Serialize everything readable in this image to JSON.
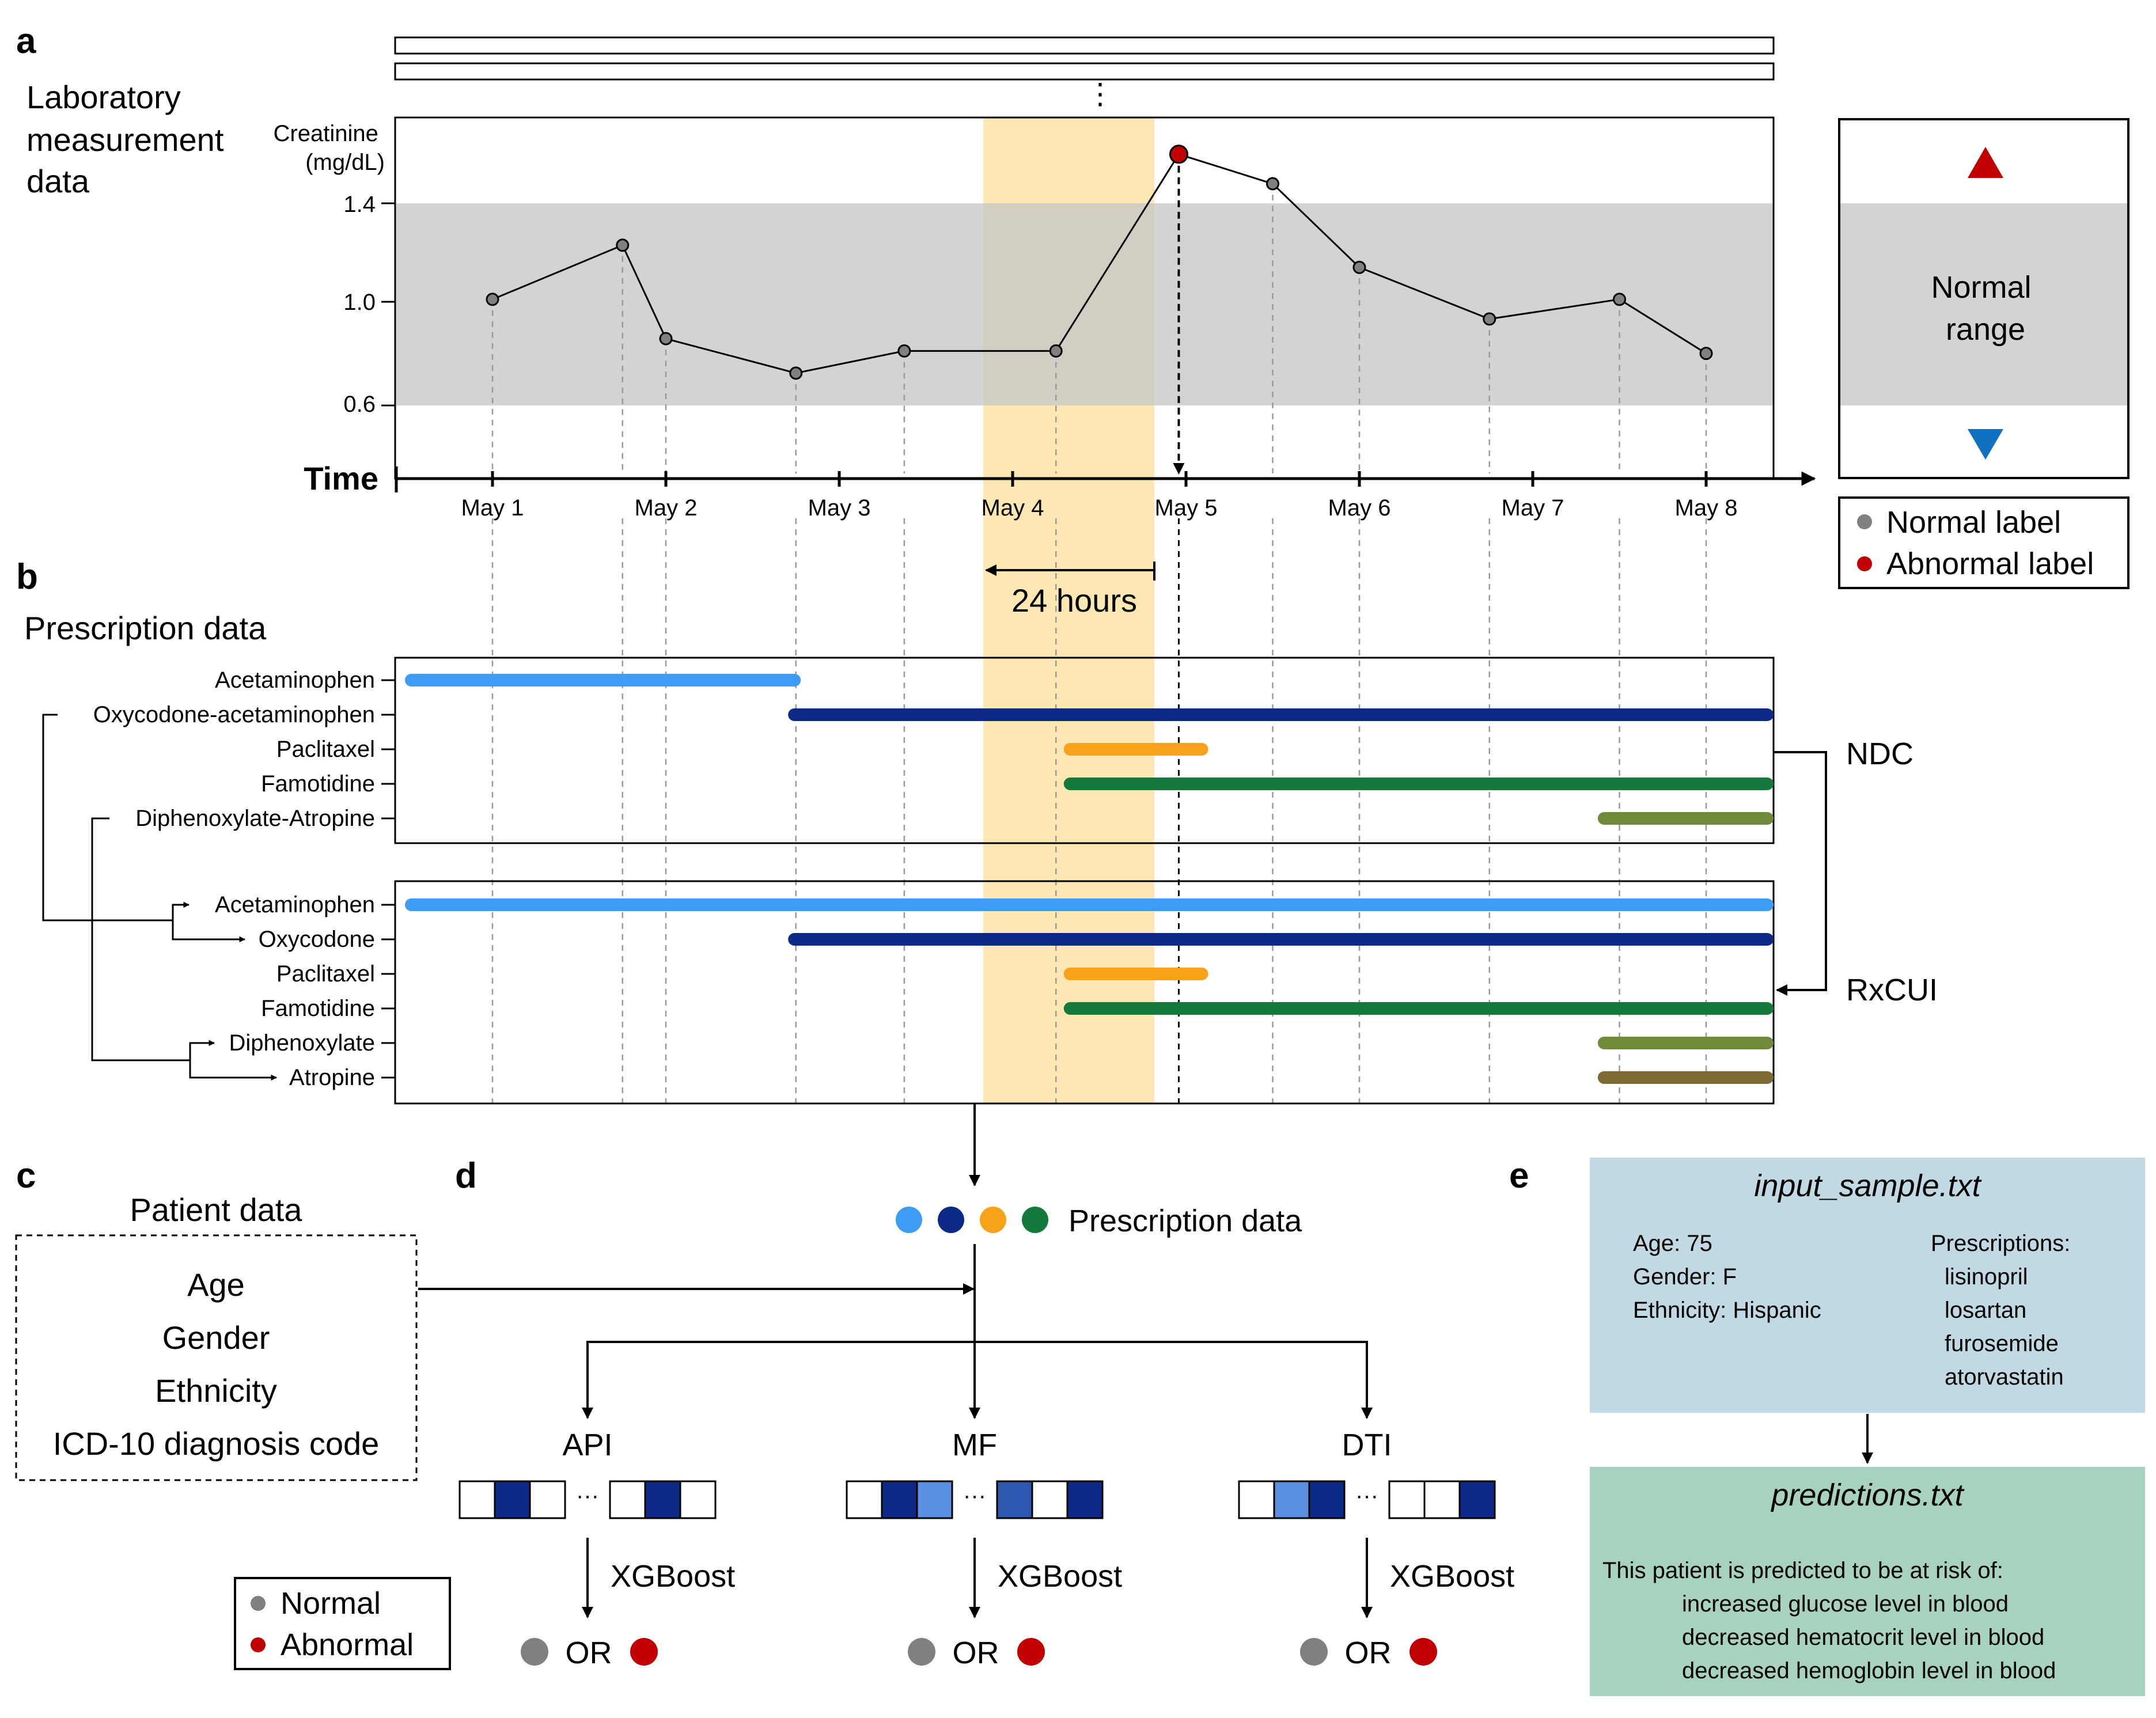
{
  "panels": {
    "a": "a",
    "b": "b",
    "c": "c",
    "d": "d",
    "e": "e"
  },
  "lab": {
    "title_lines": [
      "Laboratory",
      "measurement",
      "data"
    ],
    "measure_lines": [
      "Creatinine",
      "(mg/dL)"
    ],
    "y_ticks": [
      "1.4",
      "1.0",
      "0.6"
    ],
    "time_label": "Time",
    "dates": [
      "May 1",
      "May 2",
      "May 3",
      "May 4",
      "May 5",
      "May 6",
      "May 7",
      "May 8"
    ],
    "window_label": "24 hours",
    "ellipsis": "⋮",
    "normal_range_lines": [
      "Normal",
      "range"
    ],
    "legend": {
      "normal": "Normal label",
      "abnormal": "Abnormal label"
    },
    "colors": {
      "normal_point": "#808080",
      "abnormal_point": "#c00000",
      "up_arrow": "#c00000",
      "down_arrow": "#1070c0",
      "band": "#d3d3d3",
      "highlight": "#fde7b2"
    }
  },
  "chart_data": {
    "type": "line",
    "x": [
      "May 1 00:00",
      "May 1 18:00",
      "May 2 00:00",
      "May 2 18:00",
      "May 3 09:00",
      "May 4 06:00",
      "May 4 23:00",
      "May 5 12:00",
      "May 6 00:00",
      "May 6 18:00",
      "May 7 12:00",
      "May 8 00:00"
    ],
    "values": [
      1.01,
      1.23,
      0.85,
      0.71,
      0.8,
      0.8,
      1.6,
      1.48,
      1.14,
      0.93,
      1.01,
      0.79
    ],
    "labels": [
      "normal",
      "normal",
      "normal",
      "normal",
      "normal",
      "normal",
      "abnormal",
      "normal",
      "normal",
      "normal",
      "normal",
      "normal"
    ],
    "normal_range": [
      0.6,
      1.4
    ],
    "ylabel": "Creatinine (mg/dL)",
    "xlabel": "Time"
  },
  "prescription": {
    "title": "Prescription data",
    "ndc_label": "NDC",
    "rxcui_label": "RxCUI",
    "ndc_rows": [
      {
        "name": "Acetaminophen",
        "start": 0.09,
        "end": 2.3,
        "color": "#3d9df5"
      },
      {
        "name": "Oxycodone-acetaminophen",
        "start": 2.3,
        "end": 8.4,
        "color": "#0b2a85"
      },
      {
        "name": "Paclitaxel",
        "start": 3.89,
        "end": 4.65,
        "color": "#f7a21b"
      },
      {
        "name": "Famotidine",
        "start": 3.89,
        "end": 8.4,
        "color": "#137a3c"
      },
      {
        "name": "Diphenoxylate-Atropine",
        "start": 6.97,
        "end": 8.4,
        "color": "#6e8a3a"
      }
    ],
    "rxcui_rows": [
      {
        "name": "Acetaminophen",
        "start": 0.09,
        "end": 8.4,
        "color": "#3d9df5"
      },
      {
        "name": "Oxycodone",
        "start": 2.3,
        "end": 8.4,
        "color": "#0b2a85"
      },
      {
        "name": "Paclitaxel",
        "start": 3.89,
        "end": 4.65,
        "color": "#f7a21b"
      },
      {
        "name": "Famotidine",
        "start": 3.89,
        "end": 8.4,
        "color": "#137a3c"
      },
      {
        "name": "Diphenoxylate",
        "start": 6.97,
        "end": 8.4,
        "color": "#6e8a3a"
      },
      {
        "name": "Atropine",
        "start": 6.97,
        "end": 8.4,
        "color": "#7d6a32"
      }
    ]
  },
  "patient": {
    "title": "Patient data",
    "items": [
      "Age",
      "Gender",
      "Ethnicity",
      "ICD-10 diagnosis code"
    ]
  },
  "model": {
    "prescription_label": "Prescription data",
    "dot_colors": [
      "#3d9df5",
      "#0b2a85",
      "#f7a21b",
      "#137a3c"
    ],
    "features": [
      {
        "name": "API",
        "cells": [
          "#ffffff",
          "#0b2a85",
          "#ffffff",
          "#ffffff",
          "#0b2a85",
          "#ffffff"
        ]
      },
      {
        "name": "MF",
        "cells": [
          "#ffffff",
          "#0b2a85",
          "#5b8fe0",
          "#2c58b0",
          "#ffffff",
          "#0b2a85"
        ]
      },
      {
        "name": "DTI",
        "cells": [
          "#ffffff",
          "#5b8fe0",
          "#0b2a85",
          "#ffffff",
          "#ffffff",
          "#0b2a85"
        ]
      }
    ],
    "ellipsis": "···",
    "classifier": "XGBoost",
    "or_label": "OR",
    "legend": {
      "normal": "Normal",
      "abnormal": "Abnormal"
    }
  },
  "example": {
    "input_title": "input_sample.txt",
    "input_left": [
      "Age: 75",
      "Gender: F",
      "Ethnicity: Hispanic"
    ],
    "input_right_title": "Prescriptions:",
    "input_right": [
      "lisinopril",
      "losartan",
      "furosemide",
      "atorvastatin"
    ],
    "output_title": "predictions.txt",
    "output_intro": "This patient is predicted to be at risk of:",
    "output_lines": [
      "increased glucose level in blood",
      "decreased hematocrit level in blood",
      "decreased hemoglobin level in blood"
    ],
    "colors": {
      "input_bg": "#c0d9e2",
      "output_bg": "#a7d2bf"
    }
  }
}
